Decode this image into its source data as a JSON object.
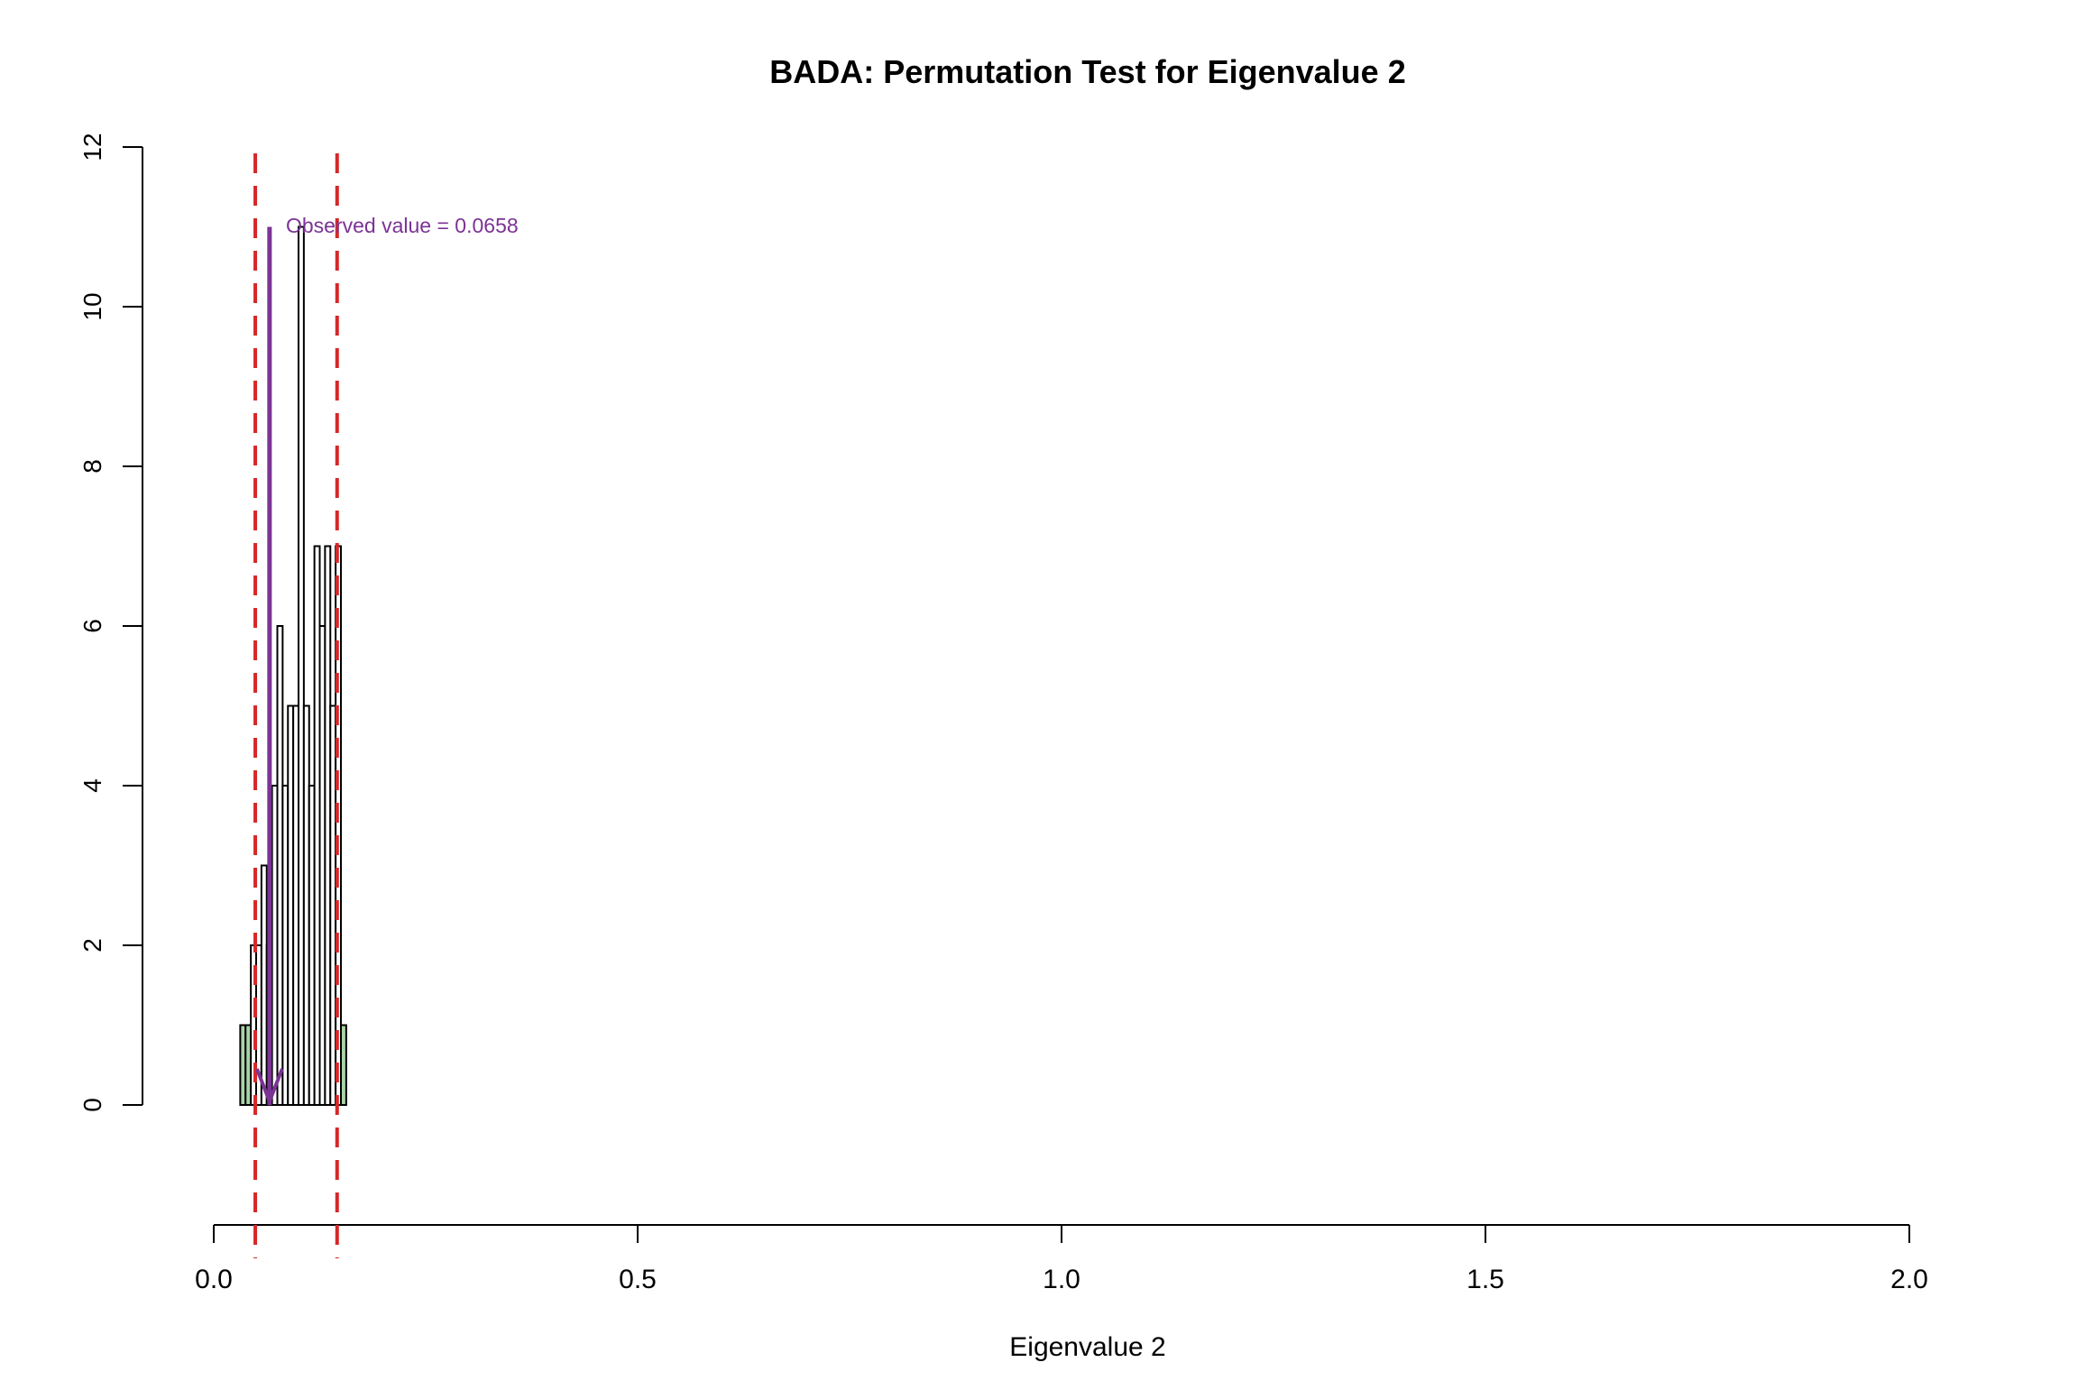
{
  "chart_data": {
    "type": "bar",
    "title": "BADA: Permutation Test for Eigenvalue 2",
    "xlabel": "Eigenvalue 2",
    "ylabel": "",
    "xlim": [
      0.0,
      2.0
    ],
    "ylim": [
      0,
      12
    ],
    "xticks": [
      "0.0",
      "0.5",
      "1.0",
      "1.5",
      "2.0"
    ],
    "yticks": [
      "0",
      "2",
      "4",
      "6",
      "8",
      "10",
      "12"
    ],
    "grid": false,
    "legend": "none",
    "bin_width": 0.00625,
    "bin_starts": [
      0.03125,
      0.0375,
      0.04375,
      0.05,
      0.05625,
      0.0625,
      0.06875,
      0.075,
      0.08125,
      0.0875,
      0.09375,
      0.1,
      0.10625,
      0.1125,
      0.11875,
      0.125,
      0.13125,
      0.1375,
      0.14375,
      0.15
    ],
    "values": [
      1,
      1,
      2,
      2,
      3,
      2,
      4,
      6,
      4,
      5,
      5,
      11,
      5,
      4,
      7,
      6,
      7,
      5,
      7,
      1
    ],
    "observed_value": 0.0658,
    "observed_label": "Observed value = 0.0658",
    "observed_bar_height": 11,
    "critical_values": [
      0.049,
      0.1455
    ],
    "colors": {
      "bar_fill": "#ffffff",
      "bar_edge_fill": "#a9d3a9",
      "bar_stroke": "#000000",
      "observed": "#7b3394",
      "critical": "#d62728",
      "axis": "#000000"
    }
  }
}
